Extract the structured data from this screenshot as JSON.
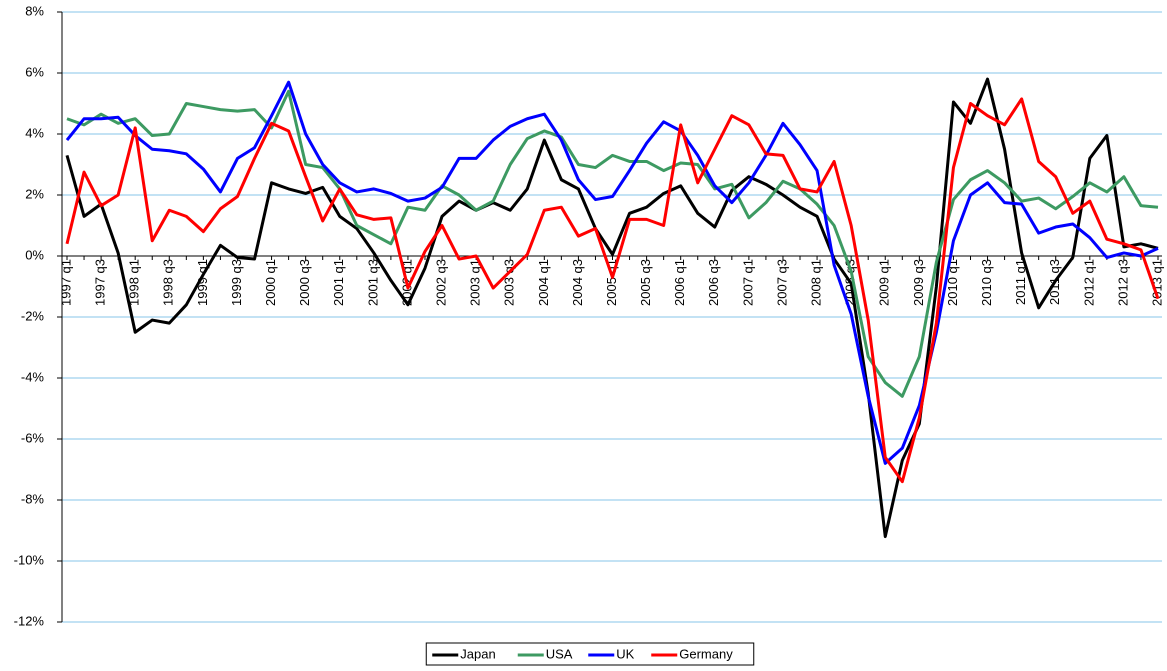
{
  "chart_data": {
    "type": "line",
    "categories": [
      "1997 q1",
      null,
      "1997 q3",
      null,
      "1998 q1",
      null,
      "1998 q3",
      null,
      "1999 q1",
      null,
      "1999 q3",
      null,
      "2000 q1",
      null,
      "2000 q3",
      null,
      "2001 q1",
      null,
      "2001 q3",
      null,
      "2002 q1",
      null,
      "2002 q3",
      null,
      "2003 q1",
      null,
      "2003 q3",
      null,
      "2004 q1",
      null,
      "2004 q3",
      null,
      "2005 q1",
      null,
      "2005 q3",
      null,
      "2006 q1",
      null,
      "2006 q3",
      null,
      "2007 q1",
      null,
      "2007 q3",
      null,
      "2008 q1",
      null,
      "2008 q3",
      null,
      "2009 q1",
      null,
      "2009 q3",
      null,
      "2010 q1",
      null,
      "2010 q3",
      null,
      "2011 q1",
      null,
      "2011 q3",
      null,
      "2012 q1",
      null,
      "2012 q3",
      null,
      "2013 q1"
    ],
    "series": [
      {
        "name": "Japan",
        "color": "#000000",
        "values": [
          3.3,
          1.3,
          1.7,
          0.1,
          -2.5,
          -2.1,
          -2.2,
          -1.6,
          -0.6,
          0.35,
          -0.05,
          -0.1,
          2.4,
          2.2,
          2.05,
          2.25,
          1.3,
          0.9,
          0.1,
          -0.8,
          -1.6,
          -0.4,
          1.3,
          1.8,
          1.5,
          1.75,
          1.5,
          2.2,
          3.8,
          2.5,
          2.2,
          0.9,
          0.05,
          1.4,
          1.6,
          2.05,
          2.3,
          1.4,
          0.95,
          2.15,
          2.6,
          2.35,
          2.0,
          1.6,
          1.3,
          -0.1,
          -0.9,
          -4.5,
          -9.2,
          -6.7,
          -5.5,
          -1.0,
          5.05,
          4.35,
          5.8,
          3.5,
          0.1,
          -1.7,
          -0.8,
          -0.05,
          3.2,
          3.95,
          0.3,
          0.4,
          0.25
        ]
      },
      {
        "name": "USA",
        "color": "#3d9a62",
        "values": [
          4.5,
          4.3,
          4.65,
          4.35,
          4.5,
          3.95,
          4.0,
          5.0,
          4.9,
          4.8,
          4.75,
          4.8,
          4.2,
          5.4,
          3.0,
          2.9,
          2.2,
          1.0,
          0.7,
          0.4,
          1.6,
          1.5,
          2.3,
          2.0,
          1.5,
          1.8,
          3.0,
          3.85,
          4.1,
          3.9,
          3.0,
          2.9,
          3.3,
          3.1,
          3.1,
          2.8,
          3.05,
          3.0,
          2.2,
          2.35,
          1.25,
          1.75,
          2.45,
          2.2,
          1.7,
          1.0,
          -0.5,
          -3.3,
          -4.15,
          -4.6,
          -3.3,
          -0.2,
          1.85,
          2.5,
          2.8,
          2.4,
          1.8,
          1.9,
          1.55,
          1.95,
          2.4,
          2.1,
          2.6,
          1.65,
          1.6
        ]
      },
      {
        "name": "UK",
        "color": "#0000ff",
        "values": [
          3.8,
          4.5,
          4.5,
          4.55,
          3.95,
          3.5,
          3.45,
          3.35,
          2.85,
          2.1,
          3.2,
          3.55,
          4.6,
          5.7,
          4.0,
          3.0,
          2.4,
          2.1,
          2.2,
          2.05,
          1.8,
          1.9,
          2.25,
          3.2,
          3.2,
          3.8,
          4.25,
          4.5,
          4.65,
          3.8,
          2.5,
          1.85,
          1.95,
          2.8,
          3.7,
          4.4,
          4.1,
          3.3,
          2.3,
          1.75,
          2.4,
          3.3,
          4.35,
          3.65,
          2.8,
          -0.3,
          -1.9,
          -4.6,
          -6.8,
          -6.3,
          -4.9,
          -2.5,
          0.5,
          2.0,
          2.4,
          1.75,
          1.7,
          0.75,
          0.95,
          1.05,
          0.6,
          -0.05,
          0.1,
          0.0,
          0.25
        ]
      },
      {
        "name": "Germany",
        "color": "#ff0000",
        "values": [
          0.4,
          2.75,
          1.65,
          2.0,
          4.2,
          0.5,
          1.5,
          1.3,
          0.8,
          1.55,
          1.95,
          3.2,
          4.35,
          4.1,
          2.6,
          1.15,
          2.2,
          1.35,
          1.2,
          1.25,
          -1.05,
          0.15,
          1.0,
          -0.1,
          0.0,
          -1.05,
          -0.5,
          0.05,
          1.5,
          1.6,
          0.65,
          0.9,
          -0.7,
          1.2,
          1.2,
          1.0,
          4.3,
          2.4,
          3.5,
          4.6,
          4.3,
          3.35,
          3.3,
          2.2,
          2.1,
          3.1,
          1.0,
          -2.1,
          -6.6,
          -7.4,
          -5.3,
          -2.2,
          2.9,
          5.0,
          4.6,
          4.3,
          5.15,
          3.1,
          2.6,
          1.4,
          1.8,
          0.55,
          0.4,
          0.2,
          -1.4
        ]
      }
    ],
    "ylim": [
      -12,
      8
    ],
    "yticks": [
      {
        "value": -12,
        "label": "-12%"
      },
      {
        "value": -10,
        "label": "-10%"
      },
      {
        "value": -8,
        "label": "-8%"
      },
      {
        "value": -6,
        "label": "-6%"
      },
      {
        "value": -4,
        "label": "-4%"
      },
      {
        "value": -2,
        "label": "-2%"
      },
      {
        "value": 0,
        "label": "0%"
      },
      {
        "value": 2,
        "label": "2%"
      },
      {
        "value": 4,
        "label": "4%"
      },
      {
        "value": 6,
        "label": "6%"
      },
      {
        "value": 8,
        "label": "8%"
      }
    ],
    "grid": true,
    "grid_color": "#87c4ea",
    "legend": "bottom"
  }
}
